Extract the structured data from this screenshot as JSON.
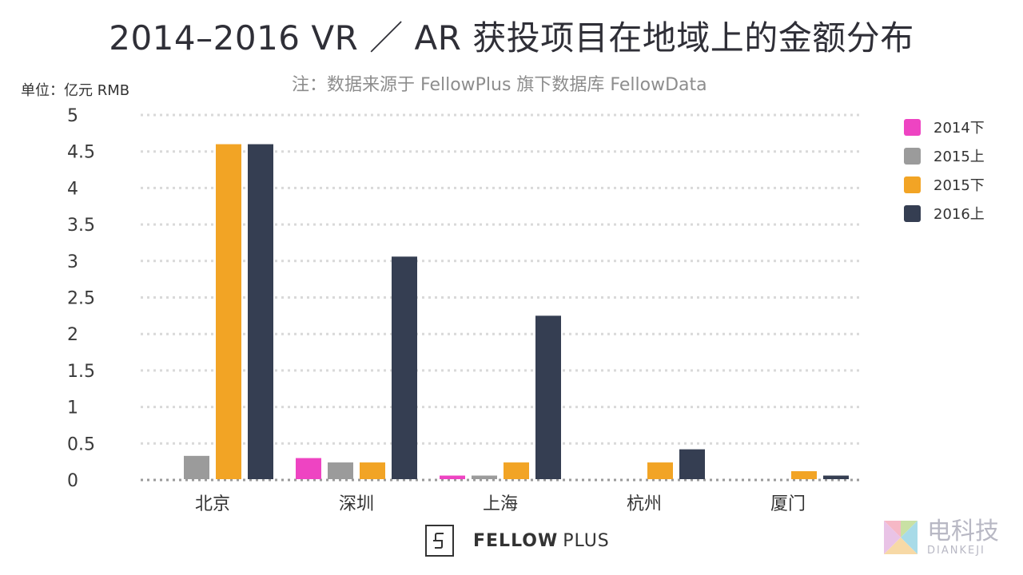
{
  "header": {
    "title": "2014–2016 VR ／ AR 获投项目在地域上的金额分布",
    "subtitle": "注：数据来源于 FellowPlus 旗下数据库 FellowData"
  },
  "unit_label": "单位：亿元 RMB",
  "footer": {
    "brand_bold": "FELLOW",
    "brand_light": "PLUS"
  },
  "watermark": {
    "cn": "电科技",
    "en": "DIANKEJI"
  },
  "chart_data": {
    "type": "bar",
    "title": "2014–2016 VR ／ AR 获投项目在地域上的金额分布",
    "subtitle": "注：数据来源于 FellowPlus 旗下数据库 FellowData",
    "ylabel": "单位：亿元 RMB",
    "xlabel": "",
    "ylim": [
      0,
      5
    ],
    "yticks": [
      "0",
      "0.5",
      "1",
      "1.5",
      "2",
      "2.5",
      "3",
      "3.5",
      "4",
      "4.5",
      "5"
    ],
    "grid": true,
    "legend_position": "right",
    "categories": [
      "北京",
      "深圳",
      "上海",
      "杭州",
      "厦门"
    ],
    "series": [
      {
        "name": "2014下",
        "color": "#ee44c2",
        "values": [
          0,
          0.3,
          0.06,
          0,
          0
        ]
      },
      {
        "name": "2015上",
        "color": "#9b9b9b",
        "values": [
          0.33,
          0.24,
          0.06,
          0,
          0
        ]
      },
      {
        "name": "2015下",
        "color": "#f2a425",
        "values": [
          4.6,
          0.24,
          0.24,
          0.24,
          0.12
        ]
      },
      {
        "name": "2016上",
        "color": "#353e52",
        "values": [
          4.6,
          3.06,
          2.25,
          0.42,
          0.06
        ]
      }
    ]
  }
}
